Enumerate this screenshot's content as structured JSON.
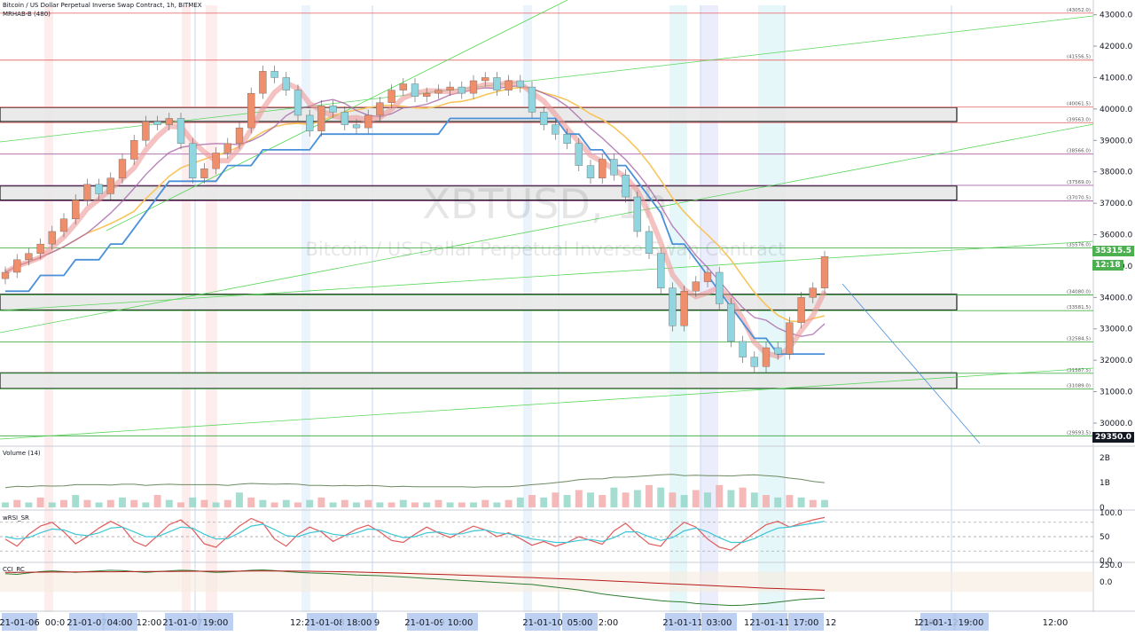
{
  "header": {
    "title": "Bitcoin / US Dollar Perpetual Inverse Swap Contract, 1h, BITMEX",
    "indicator": "MRHAB-B (480)"
  },
  "watermark": {
    "symbol": "XBTUSD, 1h",
    "description": "Bitcoin / US Dollar Perpetual Inverse Swap Contract"
  },
  "price_tags": {
    "last_price": "35315.5",
    "countdown": "12:18",
    "low_marker": "29350.0"
  },
  "panes": {
    "volume": {
      "label": "Volume (14)",
      "ticks": [
        "2B",
        "1B",
        "0"
      ]
    },
    "rsi": {
      "label": "wRSI_SR",
      "ticks": [
        "100.0",
        "50",
        "0.0"
      ]
    },
    "cci": {
      "label": "CCI_RC",
      "ticks": [
        "250.0",
        "0.0"
      ]
    }
  },
  "colors": {
    "up": "#ef8e6b",
    "down": "#8fd6e0",
    "candle_up_alt": "#6fbf73",
    "support_line": "#4caf50",
    "resistance_line": "#e57373",
    "ema_blue": "#4a90d9",
    "ema_orange": "#f7c55c",
    "ema_purple": "#a864a8",
    "band_red": "#ef9a9a",
    "axis_highlight": "#b2c8ee",
    "text": "#131722"
  },
  "chart_data": [
    {
      "type": "line",
      "title": "Bitcoin / US Dollar Perpetual Inverse Swap Contract, 1h, BITMEX",
      "y_ticks": [
        43000,
        42000,
        41000,
        40000,
        39000,
        38000,
        37000,
        36000,
        35000,
        34000,
        33000,
        32000,
        31000,
        30000
      ],
      "y_tick_labels": [
        "43000.0",
        "42000.0",
        "41000.0",
        "40000.0",
        "39000.0",
        "38000.0",
        "37000.0",
        "36000.0",
        "35000.0",
        "34000.0",
        "33000.0",
        "32000.0",
        "31000.0",
        "30000.0"
      ],
      "ylim": [
        29350,
        43300
      ],
      "x_labels": [
        "21-01-06",
        "00:0",
        "21-01-07",
        "04:00",
        "12:00",
        "21-01-07",
        "19:00",
        "12:",
        "21-01-08",
        "18:00",
        "9",
        "21-01-09",
        "10:00",
        "21-01-10",
        "05:00",
        "2:00",
        "21-01-11",
        "03:00",
        "1",
        "21-01-11",
        "17:00",
        "12",
        "12:00",
        "21-01-12",
        "19:00",
        "12:00"
      ],
      "horizontal_levels": [
        {
          "label": "(43052.0)",
          "value": 43052
        },
        {
          "label": "(41556.5)",
          "value": 41556.5
        },
        {
          "label": "(40061.5)",
          "value": 40061.5
        },
        {
          "label": "(39563.0)",
          "value": 39563
        },
        {
          "label": "(38566.0)",
          "value": 38566
        },
        {
          "label": "(37569.0)",
          "value": 37569
        },
        {
          "label": "(37070.5)",
          "value": 37070.5
        },
        {
          "label": "(35576.0)",
          "value": 35576
        },
        {
          "label": "(34080.0)",
          "value": 34080
        },
        {
          "label": "(33581.5)",
          "value": 33581.5
        },
        {
          "label": "(32584.5)",
          "value": 32584.5
        },
        {
          "label": "(31587.5)",
          "value": 31587.5
        },
        {
          "label": "(31089.0)",
          "value": 31089
        },
        {
          "label": "(29593.5)",
          "value": 29593.5
        }
      ],
      "zones": [
        {
          "from": 39600,
          "to": 40050
        },
        {
          "from": 37100,
          "to": 37550
        },
        {
          "from": 33600,
          "to": 34100
        },
        {
          "from": 31100,
          "to": 31600
        }
      ],
      "close_series": [
        34800,
        35200,
        35400,
        35700,
        36100,
        36500,
        37100,
        37600,
        37300,
        37800,
        38400,
        39000,
        39600,
        39500,
        39700,
        38900,
        37800,
        38100,
        38600,
        38900,
        39400,
        40500,
        41200,
        41000,
        40600,
        39800,
        39300,
        40100,
        39900,
        39500,
        39400,
        39800,
        40200,
        40600,
        40800,
        40400,
        40500,
        40600,
        40700,
        40500,
        40900,
        41000,
        40600,
        40900,
        40700,
        39900,
        39500,
        39200,
        38900,
        38200,
        37800,
        38400,
        37900,
        37200,
        36100,
        35400,
        34300,
        33100,
        34200,
        34500,
        34800,
        33800,
        32600,
        32100,
        31800,
        32400,
        32200,
        33200,
        34000,
        34300,
        35300
      ]
    },
    {
      "type": "bar",
      "title": "Volume (14)",
      "values": [
        0.2,
        0.3,
        0.2,
        0.4,
        0.2,
        0.3,
        0.5,
        0.3,
        0.2,
        0.3,
        0.4,
        0.3,
        0.2,
        0.5,
        0.3,
        0.2,
        0.4,
        0.3,
        0.2,
        0.3,
        0.6,
        0.4,
        0.3,
        0.2,
        0.3,
        0.2,
        0.3,
        0.4,
        0.2,
        0.3,
        0.2,
        0.3,
        0.2,
        0.2,
        0.3,
        0.2,
        0.2,
        0.3,
        0.2,
        0.2,
        0.2,
        0.3,
        0.2,
        0.3,
        0.4,
        0.5,
        0.4,
        0.6,
        0.5,
        0.7,
        0.6,
        0.5,
        0.8,
        0.6,
        0.7,
        0.9,
        0.8,
        0.6,
        0.5,
        0.7,
        0.6,
        0.9,
        0.7,
        0.8,
        0.6,
        0.5,
        0.4,
        0.5,
        0.4,
        0.3,
        0.3
      ],
      "ylim": [
        0,
        2.4
      ]
    },
    {
      "type": "line",
      "title": "wRSI_SR",
      "series": [
        {
          "values": [
            45,
            30,
            55,
            72,
            80,
            60,
            35,
            50,
            68,
            82,
            70,
            40,
            30,
            52,
            75,
            85,
            65,
            35,
            28,
            50,
            72,
            88,
            78,
            45,
            30,
            55,
            70,
            60,
            40,
            52,
            66,
            74,
            60,
            42,
            38,
            55,
            70,
            58,
            48,
            60,
            72,
            64,
            50,
            58,
            46,
            32,
            40,
            30,
            38,
            50,
            42,
            34,
            62,
            78,
            55,
            35,
            30,
            60,
            80,
            70,
            45,
            28,
            22,
            40,
            58,
            75,
            82,
            70,
            78,
            85,
            90
          ]
        },
        {
          "values": [
            50,
            45,
            48,
            58,
            66,
            64,
            55,
            52,
            58,
            68,
            70,
            60,
            50,
            50,
            60,
            70,
            68,
            55,
            45,
            46,
            58,
            72,
            76,
            65,
            52,
            50,
            58,
            62,
            55,
            52,
            58,
            66,
            64,
            55,
            48,
            50,
            58,
            60,
            55,
            56,
            62,
            64,
            58,
            56,
            52,
            45,
            42,
            38,
            38,
            42,
            44,
            40,
            48,
            60,
            60,
            50,
            42,
            48,
            62,
            68,
            60,
            48,
            38,
            38,
            46,
            58,
            68,
            70,
            74,
            78,
            82
          ]
        }
      ],
      "ylim": [
        0,
        100
      ]
    },
    {
      "type": "line",
      "title": "CCI_RC",
      "series": [
        {
          "values": [
            120,
            110,
            130,
            150,
            160,
            150,
            140,
            150,
            160,
            170,
            165,
            150,
            140,
            150,
            160,
            170,
            165,
            150,
            140,
            145,
            155,
            170,
            175,
            165,
            150,
            140,
            130,
            125,
            120,
            110,
            100,
            95,
            90,
            80,
            70,
            60,
            50,
            40,
            30,
            20,
            10,
            0,
            -10,
            -20,
            -30,
            -40,
            -60,
            -80,
            -100,
            -120,
            -150,
            -180,
            -200,
            -220,
            -240,
            -260,
            -280,
            -290,
            -300,
            -320,
            -330,
            -340,
            -350,
            -345,
            -330,
            -320,
            -300,
            -280,
            -260,
            -250,
            -240
          ]
        },
        {
          "values": [
            140,
            140,
            141,
            142,
            143,
            144,
            145,
            146,
            147,
            148,
            149,
            150,
            151,
            152,
            153,
            154,
            155,
            156,
            156,
            156,
            157,
            158,
            159,
            159,
            158,
            157,
            155,
            153,
            150,
            147,
            143,
            139,
            135,
            130,
            125,
            120,
            115,
            110,
            104,
            98,
            92,
            86,
            80,
            74,
            68,
            62,
            55,
            48,
            41,
            34,
            26,
            18,
            10,
            2,
            -6,
            -14,
            -22,
            -30,
            -38,
            -46,
            -54,
            -62,
            -70,
            -78,
            -86,
            -94,
            -100,
            -106,
            -112,
            -118,
            -124
          ]
        }
      ],
      "ylim": [
        -420,
        260
      ]
    }
  ]
}
